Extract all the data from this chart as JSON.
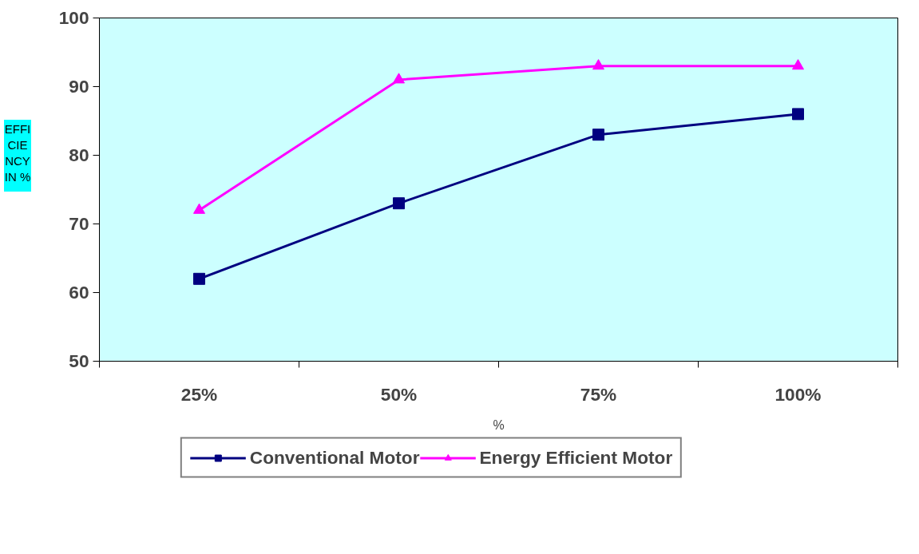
{
  "chart_data": {
    "type": "line",
    "xlabel": "%",
    "ylabel": "EFFICIENCY IN %",
    "categories": [
      "25%",
      "50%",
      "75%",
      "100%"
    ],
    "series": [
      {
        "name": "Conventional Motor",
        "color": "#000080",
        "marker": "square",
        "values": [
          62,
          73,
          83,
          86
        ]
      },
      {
        "name": "Energy Efficient Motor",
        "color": "#ff00ff",
        "marker": "triangle",
        "values": [
          72,
          91,
          93,
          93
        ]
      }
    ],
    "ylim": [
      50,
      100
    ],
    "yticks": [
      50,
      60,
      70,
      80,
      90,
      100
    ],
    "grid": false,
    "legend": "bottom",
    "line_style": "solid"
  }
}
